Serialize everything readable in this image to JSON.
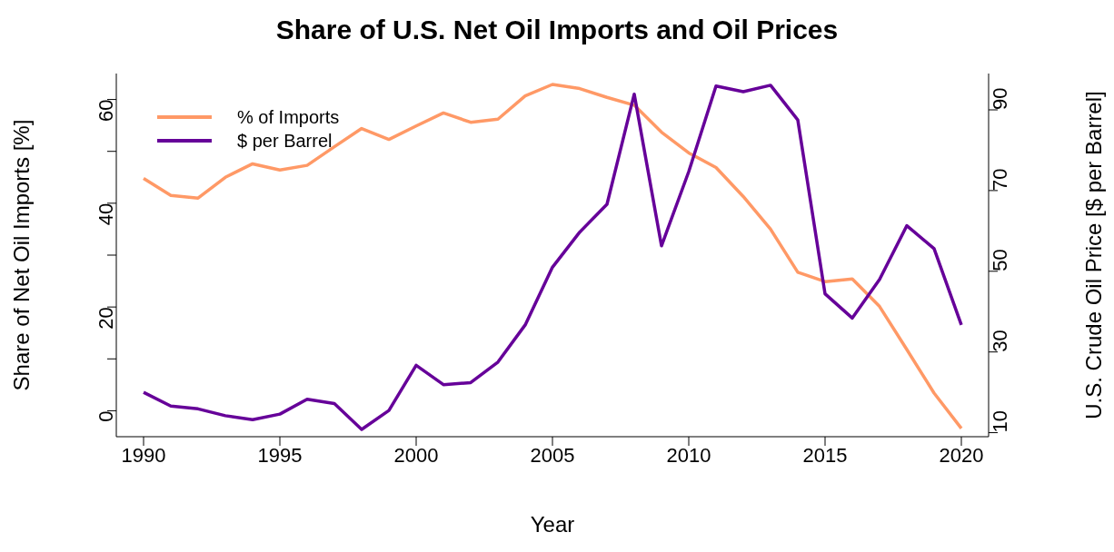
{
  "chart_data": {
    "type": "line",
    "title": "Share of U.S. Net Oil Imports and Oil Prices",
    "xlabel": "Year",
    "ylabel": "Share of Net Oil Imports [%]",
    "y2label": "U.S. Crude Oil Price [$ per Barrel]",
    "x": [
      1990,
      1991,
      1992,
      1993,
      1994,
      1995,
      1996,
      1997,
      1998,
      1999,
      2000,
      2001,
      2002,
      2003,
      2004,
      2005,
      2006,
      2007,
      2008,
      2009,
      2010,
      2011,
      2012,
      2013,
      2014,
      2015,
      2016,
      2017,
      2018,
      2019,
      2020
    ],
    "series": [
      {
        "name": "% of Imports",
        "color": "#ff9966",
        "values": [
          44.8,
          41.5,
          41.0,
          45.0,
          47.6,
          46.4,
          47.3,
          50.9,
          54.4,
          52.3,
          54.9,
          57.4,
          55.6,
          56.2,
          60.7,
          62.9,
          62.1,
          60.4,
          58.9,
          53.7,
          49.7,
          46.9,
          41.3,
          35.0,
          26.7,
          24.9,
          25.4,
          20.1,
          11.8,
          3.4,
          -3.4
        ]
      },
      {
        "name": "$ per Barrel",
        "color": "#660099",
        "axis": "y2",
        "values": [
          20.0,
          16.6,
          15.9,
          14.2,
          13.2,
          14.6,
          18.3,
          17.2,
          10.8,
          15.5,
          26.7,
          21.9,
          22.4,
          27.5,
          36.7,
          51.0,
          59.7,
          66.6,
          93.9,
          56.3,
          74.7,
          95.9,
          94.5,
          96.1,
          87.5,
          44.4,
          38.4,
          48.0,
          61.3,
          55.6,
          36.7
        ]
      }
    ],
    "xlim": [
      1989,
      2021
    ],
    "xticks": [
      1990,
      1995,
      2000,
      2005,
      2010,
      2015,
      2020
    ],
    "ylim": [
      -5,
      65
    ],
    "yticks": [
      0,
      {
        "value": 10,
        "label": null
      },
      20,
      {
        "value": 30,
        "label": null
      },
      40,
      {
        "value": 50,
        "label": null
      },
      60
    ],
    "y2lim": [
      9,
      99
    ],
    "y2ticks": [
      10,
      30,
      50,
      70,
      90
    ],
    "legend": "top left",
    "grid": false,
    "marker": "none",
    "line_style": "solid"
  }
}
